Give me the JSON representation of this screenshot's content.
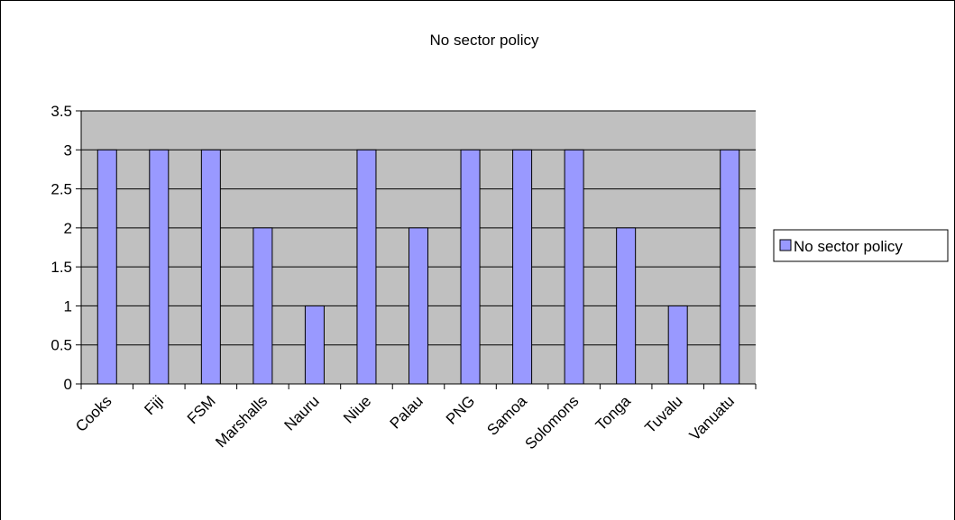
{
  "chart_data": {
    "type": "bar",
    "title": "No sector policy",
    "xlabel": "",
    "ylabel": "",
    "categories": [
      "Cooks",
      "Fiji",
      "FSM",
      "Marshalls",
      "Nauru",
      "Niue",
      "Palau",
      "PNG",
      "Samoa",
      "Solomons",
      "Tonga",
      "Tuvalu",
      "Vanuatu"
    ],
    "series": [
      {
        "name": "No sector policy",
        "values": [
          3,
          3,
          3,
          2,
          1,
          3,
          2,
          3,
          3,
          3,
          2,
          1,
          3
        ],
        "color": "#9999ff"
      }
    ],
    "ylim": [
      0,
      3.5
    ],
    "yticks": [
      "0",
      "0.5",
      "1",
      "1.5",
      "2",
      "2.5",
      "3",
      "3.5"
    ],
    "grid": true,
    "legend_position": "right",
    "plot_background": "#c0c0c0"
  }
}
